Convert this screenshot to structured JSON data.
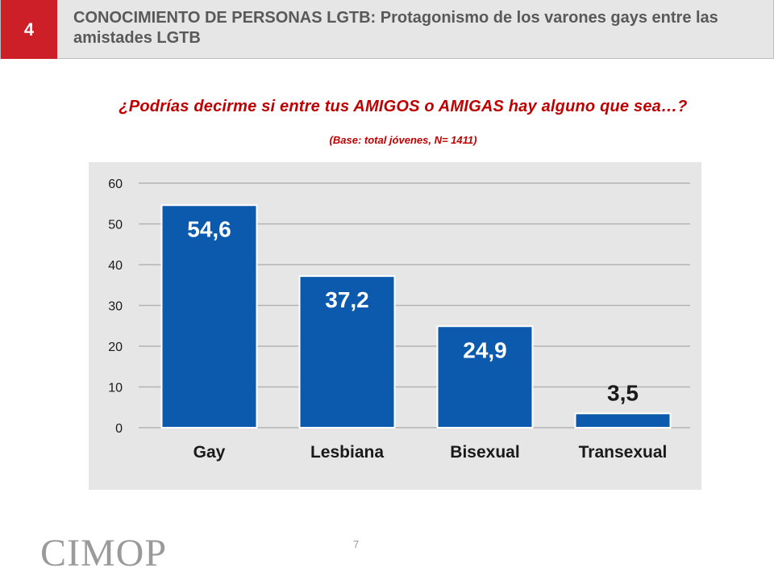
{
  "header": {
    "badge": "4",
    "title": "CONOCIMIENTO DE PERSONAS LGTB: Protagonismo de los varones gays entre las amistades LGTB"
  },
  "question": "¿Podrías decirme si entre tus AMIGOS o AMIGAS hay alguno que sea…?",
  "base_note": "(Base: total jóvenes, N= 1411)",
  "footer": {
    "logo": "CIMOP",
    "page_number": "7"
  },
  "colors": {
    "accent_red": "#cc1f27",
    "bar_blue": "#0b5aad",
    "panel_gray": "#e6e6e6"
  },
  "chart_data": {
    "type": "bar",
    "categories": [
      "Gay",
      "Lesbiana",
      "Bisexual",
      "Transexual"
    ],
    "values": [
      54.6,
      37.2,
      24.9,
      3.5
    ],
    "value_labels": [
      "54,6",
      "37,2",
      "24,9",
      "3,5"
    ],
    "title": "",
    "xlabel": "",
    "ylabel": "",
    "ylim": [
      0,
      60
    ],
    "yticks": [
      0,
      10,
      20,
      30,
      40,
      50,
      60
    ],
    "grid": true,
    "legend": "none"
  }
}
